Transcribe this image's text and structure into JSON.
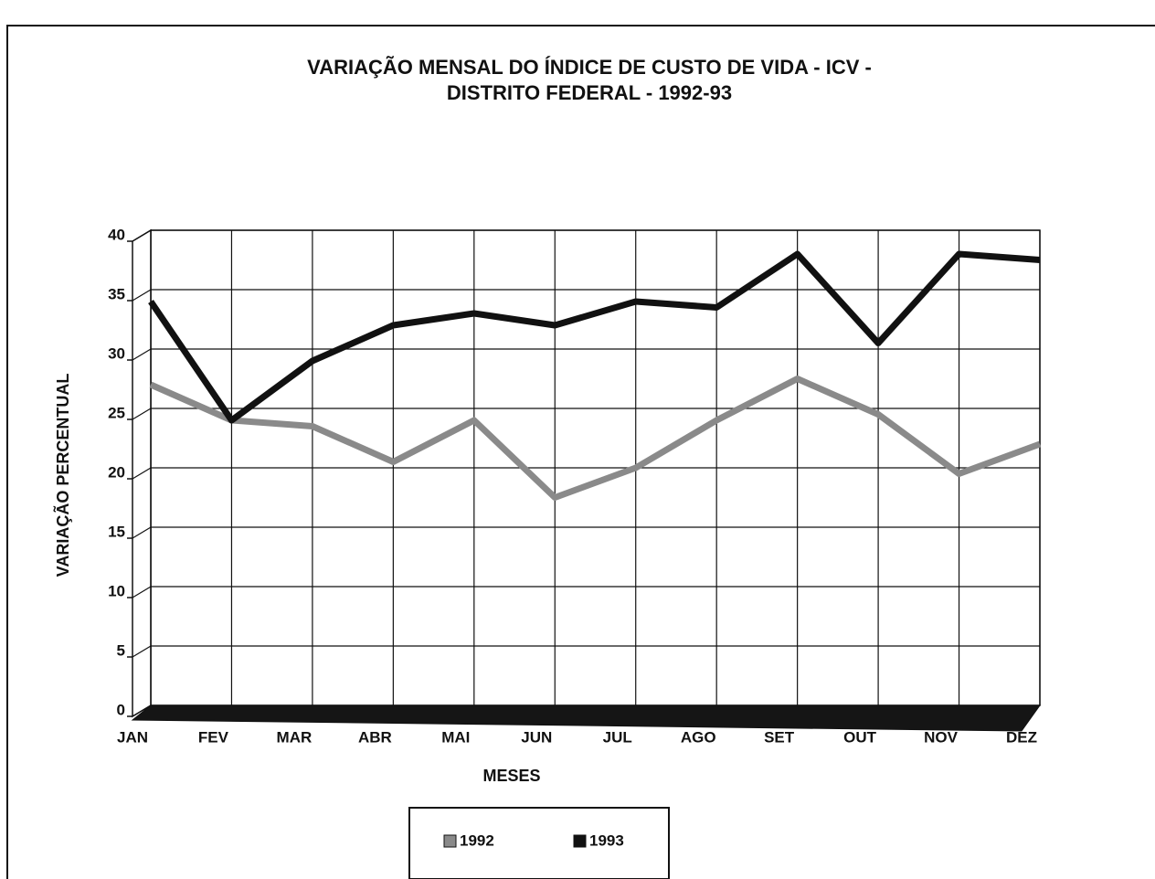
{
  "chart_data": {
    "type": "line",
    "title": "VARIAÇÃO MENSAL DO ÍNDICE DE CUSTO DE VIDA - ICV -",
    "subtitle": "DISTRITO FEDERAL - 1992-93",
    "x_label": "MESES",
    "y_label": "VARIAÇÃO PERCENTUAL",
    "categories": [
      "JAN",
      "FEV",
      "MAR",
      "ABR",
      "MAI",
      "JUN",
      "JUL",
      "AGO",
      "SET",
      "OUT",
      "NOV",
      "DEZ"
    ],
    "series": [
      {
        "name": "1992",
        "color": "#8a8a8a",
        "values": [
          27,
          24,
          23.5,
          20.5,
          24,
          17.5,
          20,
          24,
          27.5,
          24.5,
          19.5,
          22
        ]
      },
      {
        "name": "1993",
        "color": "#111111",
        "values": [
          34,
          24,
          29,
          32,
          33,
          32,
          34,
          33.5,
          38,
          30.5,
          38,
          37.5
        ]
      }
    ],
    "ylim": [
      0,
      40
    ],
    "yticks": [
      0,
      5,
      10,
      15,
      20,
      25,
      30,
      35,
      40
    ],
    "grid": true,
    "legend": "bottom"
  }
}
